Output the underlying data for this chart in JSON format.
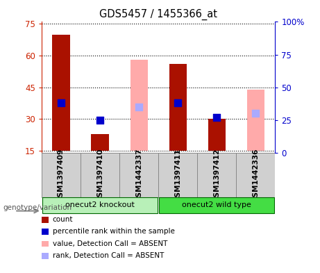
{
  "title": "GDS5457 / 1455366_at",
  "samples": [
    "GSM1397409",
    "GSM1397410",
    "GSM1442337",
    "GSM1397411",
    "GSM1397412",
    "GSM1442336"
  ],
  "group_labels": [
    "onecut2 knockout",
    "onecut2 wild type"
  ],
  "absent": [
    false,
    false,
    true,
    false,
    false,
    true
  ],
  "red_bar_values": [
    70.0,
    23.0,
    null,
    56.0,
    30.0,
    null
  ],
  "pink_bar_values": [
    null,
    null,
    58.0,
    null,
    null,
    44.0
  ],
  "blue_dot_values": [
    38.0,
    25.0,
    null,
    38.0,
    27.0,
    null
  ],
  "light_blue_dot_values": [
    null,
    null,
    35.0,
    null,
    null,
    30.0
  ],
  "ylim_left": [
    14,
    76
  ],
  "ylim_right": [
    0,
    100
  ],
  "yticks_left": [
    15,
    30,
    45,
    60,
    75
  ],
  "yticks_right": [
    0,
    25,
    50,
    75,
    100
  ],
  "ytick_labels_right": [
    "0",
    "25",
    "50",
    "75",
    "100%"
  ],
  "bar_width": 0.45,
  "dot_size": 55,
  "left_axis_color": "#cc2200",
  "right_axis_color": "#0000cc",
  "red_bar_color": "#aa1100",
  "pink_bar_color": "#ffaaaa",
  "blue_dot_color": "#0000cc",
  "light_blue_dot_color": "#aaaaff",
  "group_bg_knockout": "#b8f0b8",
  "group_bg_wildtype": "#44dd44",
  "genotype_label": "genotype/variation",
  "legend_items": [
    {
      "label": "count",
      "color": "#aa1100"
    },
    {
      "label": "percentile rank within the sample",
      "color": "#0000cc"
    },
    {
      "label": "value, Detection Call = ABSENT",
      "color": "#ffaaaa"
    },
    {
      "label": "rank, Detection Call = ABSENT",
      "color": "#aaaaff"
    }
  ],
  "bar_bottom": 15
}
